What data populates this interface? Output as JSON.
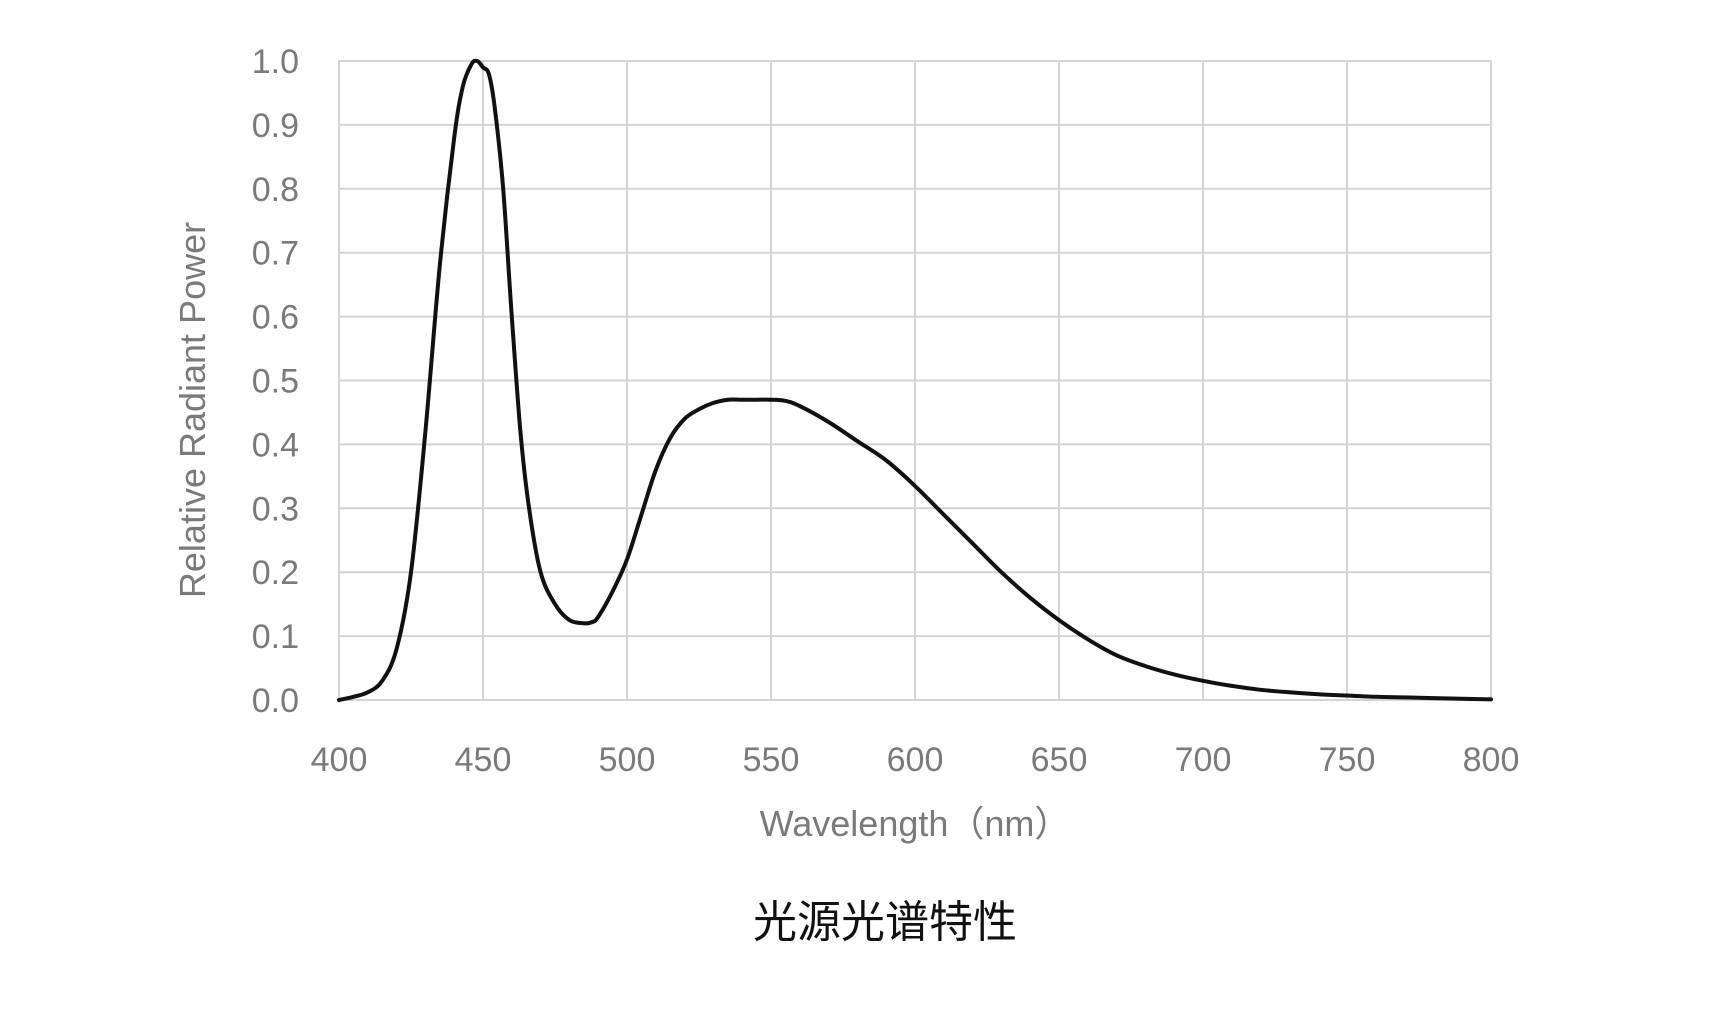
{
  "caption": "光源光谱特性",
  "chart_data": {
    "type": "line",
    "title": "",
    "xlabel": "Wavelength（nm）",
    "ylabel": "Relative Radiant Power",
    "xlim": [
      400,
      800
    ],
    "ylim": [
      0.0,
      1.0
    ],
    "x_ticks": [
      "400",
      "450",
      "500",
      "550",
      "600",
      "650",
      "700",
      "750",
      "800"
    ],
    "y_ticks": [
      "0.0",
      "0.1",
      "0.2",
      "0.3",
      "0.4",
      "0.5",
      "0.6",
      "0.7",
      "0.8",
      "0.9",
      "1.0"
    ],
    "grid": true,
    "legend": "none",
    "series": [
      {
        "color": "#111111",
        "x": [
          400,
          405,
          410,
          415,
          420,
          425,
          430,
          435,
          440,
          443,
          446,
          448,
          450,
          452,
          454,
          457,
          460,
          463,
          466,
          470,
          475,
          480,
          485,
          488,
          490,
          495,
          500,
          505,
          510,
          515,
          520,
          525,
          530,
          535,
          540,
          545,
          550,
          555,
          560,
          570,
          580,
          590,
          600,
          610,
          620,
          630,
          640,
          650,
          660,
          670,
          680,
          690,
          700,
          710,
          720,
          730,
          740,
          750,
          760,
          770,
          780,
          790,
          800
        ],
        "y": [
          0.0,
          0.005,
          0.012,
          0.03,
          0.08,
          0.2,
          0.42,
          0.68,
          0.88,
          0.96,
          0.995,
          1.0,
          0.99,
          0.98,
          0.93,
          0.8,
          0.6,
          0.42,
          0.3,
          0.2,
          0.15,
          0.125,
          0.12,
          0.122,
          0.13,
          0.17,
          0.22,
          0.29,
          0.36,
          0.41,
          0.44,
          0.455,
          0.465,
          0.47,
          0.47,
          0.47,
          0.47,
          0.468,
          0.46,
          0.435,
          0.405,
          0.375,
          0.335,
          0.29,
          0.245,
          0.2,
          0.16,
          0.125,
          0.095,
          0.07,
          0.053,
          0.04,
          0.03,
          0.022,
          0.016,
          0.012,
          0.009,
          0.007,
          0.005,
          0.004,
          0.003,
          0.002,
          0.001
        ]
      }
    ]
  }
}
